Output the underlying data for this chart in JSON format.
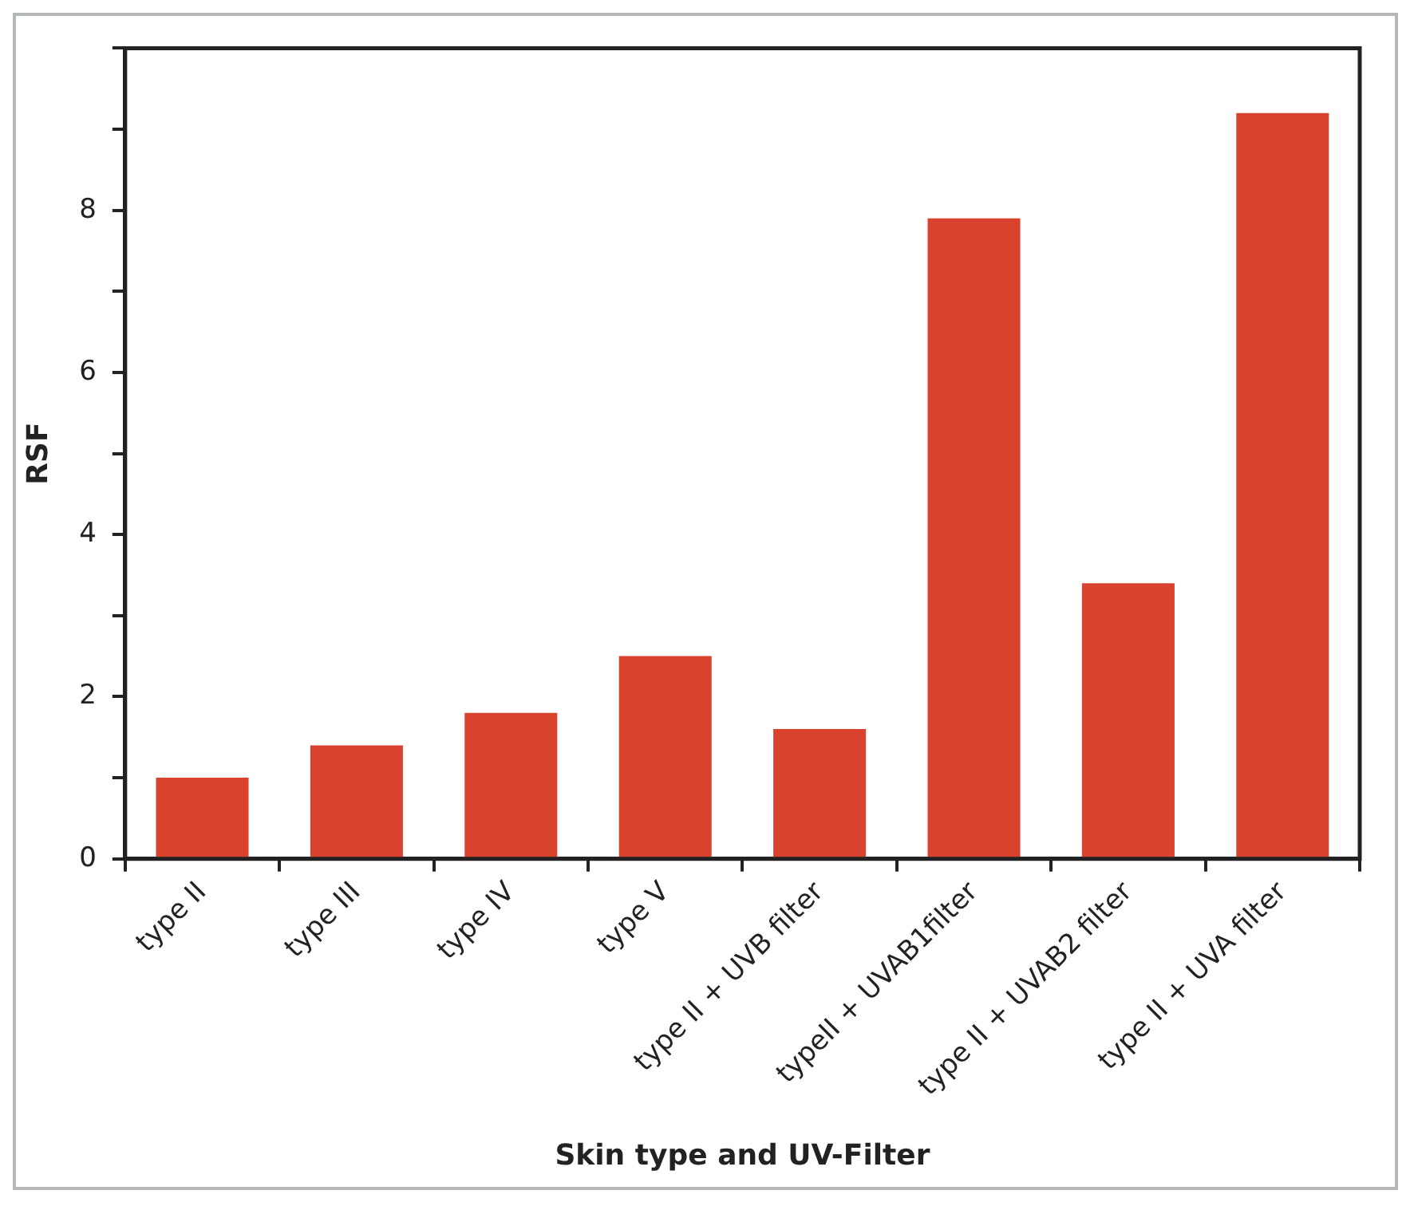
{
  "chart_data": {
    "type": "bar",
    "xlabel": "Skin type and UV-Filter",
    "ylabel": "RSF",
    "categories": [
      "type II",
      "type III",
      "type IV",
      "type V",
      "type II + UVB filter",
      "typeII + UVAB1filter",
      "type II + UVAB2 filter",
      "type II + UVA filter"
    ],
    "values": [
      1.0,
      1.4,
      1.8,
      2.5,
      1.6,
      7.9,
      3.4,
      9.2
    ],
    "color": "#d9432e",
    "ylim": [
      0,
      10
    ],
    "yticks": [
      0,
      {
        "value": 1,
        "label": null
      },
      2,
      {
        "value": 3,
        "label": null
      },
      4,
      {
        "value": 5,
        "label": null
      },
      6,
      {
        "value": 7,
        "label": null
      },
      8,
      {
        "value": 9,
        "label": null
      },
      {
        "value": 10,
        "label": null
      }
    ],
    "grid": false,
    "legend": false
  }
}
